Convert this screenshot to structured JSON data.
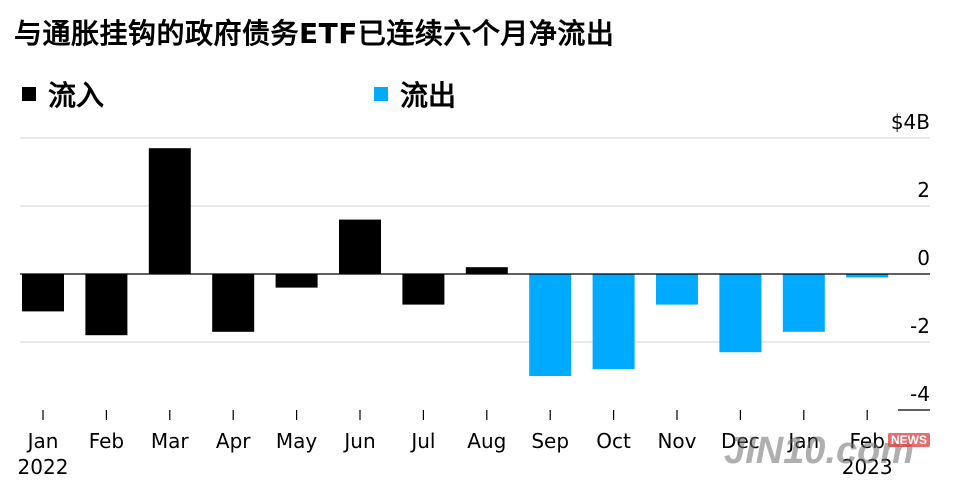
{
  "title": "与通胀挂钩的政府债务ETF已连续六个月净流出",
  "legend": [
    {
      "label": "流入",
      "color": "#000000"
    },
    {
      "label": "流出",
      "color": "#00aaff"
    }
  ],
  "watermark": {
    "text": "JIN10.com",
    "badge": "NEWS"
  },
  "chart_data": {
    "type": "bar",
    "title": "与通胀挂钩的政府债务ETF已连续六个月净流出",
    "categories": [
      "Jan",
      "Feb",
      "Mar",
      "Apr",
      "May",
      "Jun",
      "Jul",
      "Aug",
      "Sep",
      "Oct",
      "Nov",
      "Dec",
      "Jan",
      "Feb"
    ],
    "year_labels": [
      {
        "index": 0,
        "label": "2022"
      },
      {
        "index": 13,
        "label": "2023"
      }
    ],
    "values": [
      -1.1,
      -1.8,
      3.7,
      -1.7,
      -0.4,
      1.6,
      -0.9,
      0.2,
      -3.0,
      -2.8,
      -0.9,
      -2.3,
      -1.7,
      -0.1
    ],
    "series_colors": {
      "inflow": "#000000",
      "outflow": "#00aaff"
    },
    "series_assignment": [
      "inflow",
      "inflow",
      "inflow",
      "inflow",
      "inflow",
      "inflow",
      "inflow",
      "inflow",
      "outflow",
      "outflow",
      "outflow",
      "outflow",
      "outflow",
      "outflow"
    ],
    "ylim": [
      -4,
      4
    ],
    "yticks": [
      4,
      2,
      0,
      -2,
      -4
    ],
    "ytick_labels": [
      "$4B",
      "2",
      "0",
      "-2",
      "-4"
    ],
    "grid": true,
    "legend_position": "top-left"
  }
}
